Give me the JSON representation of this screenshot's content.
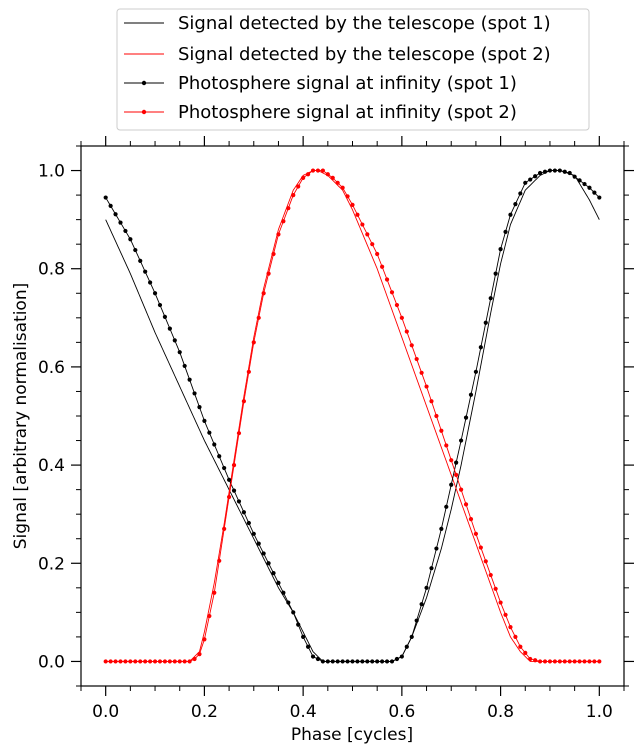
{
  "chart_data": {
    "type": "line",
    "title": "",
    "xlabel": "Phase [cycles]",
    "ylabel": "Signal [arbitrary normalisation]",
    "xlim": [
      -0.05,
      1.05
    ],
    "ylim": [
      -0.05,
      1.05
    ],
    "x_ticks": [
      "0.0",
      "0.2",
      "0.4",
      "0.6",
      "0.8",
      "1.0"
    ],
    "y_ticks": [
      "0.0",
      "0.2",
      "0.4",
      "0.6",
      "0.8",
      "1.0"
    ],
    "grid": false,
    "legend_position": "top-center-outside",
    "colors": {
      "spot1": "#000000",
      "spot2": "#ff0000"
    },
    "series": [
      {
        "name": "Signal detected by the telescope (spot 1)",
        "style": "line",
        "color": "#000000",
        "x": [
          0.0,
          0.05,
          0.1,
          0.15,
          0.2,
          0.25,
          0.3,
          0.35,
          0.38,
          0.4,
          0.42,
          0.44,
          0.5,
          0.55,
          0.58,
          0.6,
          0.62,
          0.65,
          0.68,
          0.7,
          0.72,
          0.75,
          0.78,
          0.8,
          0.82,
          0.85,
          0.88,
          0.9,
          0.92,
          0.95,
          0.98,
          1.0
        ],
        "y": [
          0.9,
          0.79,
          0.67,
          0.56,
          0.45,
          0.35,
          0.25,
          0.15,
          0.1,
          0.06,
          0.02,
          0.0,
          0.0,
          0.0,
          0.0,
          0.01,
          0.05,
          0.13,
          0.23,
          0.31,
          0.4,
          0.55,
          0.71,
          0.81,
          0.89,
          0.96,
          0.99,
          1.0,
          1.0,
          0.99,
          0.94,
          0.9
        ]
      },
      {
        "name": "Signal detected by the telescope (spot 2)",
        "style": "line",
        "color": "#ff0000",
        "x": [
          0.0,
          0.15,
          0.17,
          0.19,
          0.2,
          0.22,
          0.24,
          0.26,
          0.28,
          0.3,
          0.32,
          0.35,
          0.38,
          0.4,
          0.42,
          0.43,
          0.45,
          0.48,
          0.5,
          0.55,
          0.6,
          0.65,
          0.7,
          0.75,
          0.8,
          0.82,
          0.84,
          0.86,
          0.88,
          1.0
        ],
        "y": [
          0.0,
          0.0,
          0.0,
          0.02,
          0.06,
          0.16,
          0.28,
          0.41,
          0.54,
          0.66,
          0.76,
          0.88,
          0.96,
          0.99,
          1.0,
          1.0,
          0.99,
          0.96,
          0.92,
          0.8,
          0.66,
          0.52,
          0.38,
          0.24,
          0.1,
          0.05,
          0.02,
          0.0,
          0.0,
          0.0
        ]
      },
      {
        "name": "Photosphere signal at infinity (spot 1)",
        "style": "line-markers",
        "color": "#000000",
        "x": [
          0.0,
          0.05,
          0.1,
          0.15,
          0.2,
          0.25,
          0.3,
          0.35,
          0.38,
          0.4,
          0.42,
          0.44,
          0.5,
          0.55,
          0.58,
          0.6,
          0.62,
          0.65,
          0.68,
          0.7,
          0.72,
          0.75,
          0.78,
          0.8,
          0.82,
          0.85,
          0.88,
          0.9,
          0.92,
          0.94,
          0.96,
          0.98,
          1.0
        ],
        "y": [
          0.945,
          0.86,
          0.75,
          0.63,
          0.49,
          0.37,
          0.26,
          0.16,
          0.1,
          0.05,
          0.01,
          0.0,
          0.0,
          0.0,
          0.0,
          0.01,
          0.05,
          0.15,
          0.27,
          0.36,
          0.45,
          0.59,
          0.74,
          0.84,
          0.91,
          0.975,
          0.995,
          1.0,
          1.0,
          0.995,
          0.98,
          0.965,
          0.945
        ]
      },
      {
        "name": "Photosphere signal at infinity (spot 2)",
        "style": "line-markers",
        "color": "#ff0000",
        "x": [
          0.0,
          0.15,
          0.17,
          0.18,
          0.19,
          0.2,
          0.22,
          0.24,
          0.26,
          0.28,
          0.3,
          0.32,
          0.35,
          0.38,
          0.4,
          0.42,
          0.44,
          0.46,
          0.48,
          0.5,
          0.55,
          0.6,
          0.65,
          0.7,
          0.75,
          0.8,
          0.82,
          0.84,
          0.86,
          0.88,
          1.0
        ],
        "y": [
          0.0,
          0.0,
          0.0,
          0.005,
          0.015,
          0.045,
          0.14,
          0.27,
          0.4,
          0.53,
          0.65,
          0.75,
          0.87,
          0.95,
          0.985,
          1.0,
          1.0,
          0.985,
          0.965,
          0.93,
          0.83,
          0.7,
          0.56,
          0.41,
          0.26,
          0.12,
          0.07,
          0.03,
          0.005,
          0.0,
          0.0
        ]
      }
    ]
  }
}
